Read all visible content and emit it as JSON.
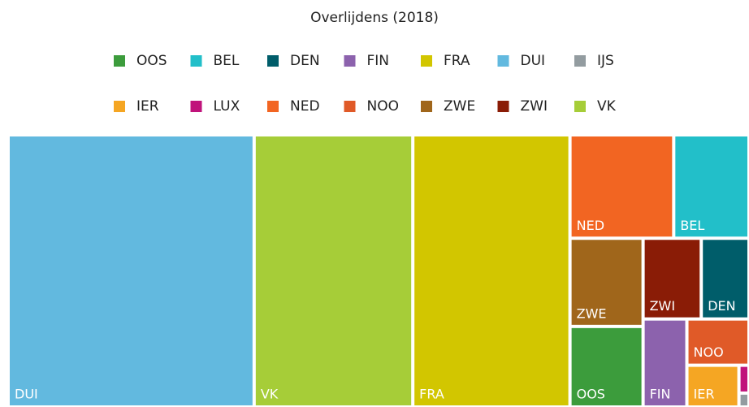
{
  "chart_data": {
    "type": "treemap",
    "title": "Overlijdens (2018)",
    "categories": [
      "OOS",
      "BEL",
      "DEN",
      "FIN",
      "FRA",
      "DUI",
      "IJS",
      "IER",
      "LUX",
      "NED",
      "NOO",
      "ZWE",
      "ZWI",
      "VK"
    ],
    "values": [
      84000,
      111000,
      55000,
      55000,
      610000,
      955000,
      2000,
      31000,
      4000,
      153000,
      41000,
      92000,
      67000,
      616000
    ],
    "colors": [
      "#3c9c3c",
      "#22bfc9",
      "#005d6a",
      "#8c62ad",
      "#d2c600",
      "#62b9df",
      "#939ca0",
      "#f5a623",
      "#c0137b",
      "#f26522",
      "#e05a28",
      "#a0661b",
      "#8a1c06",
      "#a6cd38"
    ]
  }
}
